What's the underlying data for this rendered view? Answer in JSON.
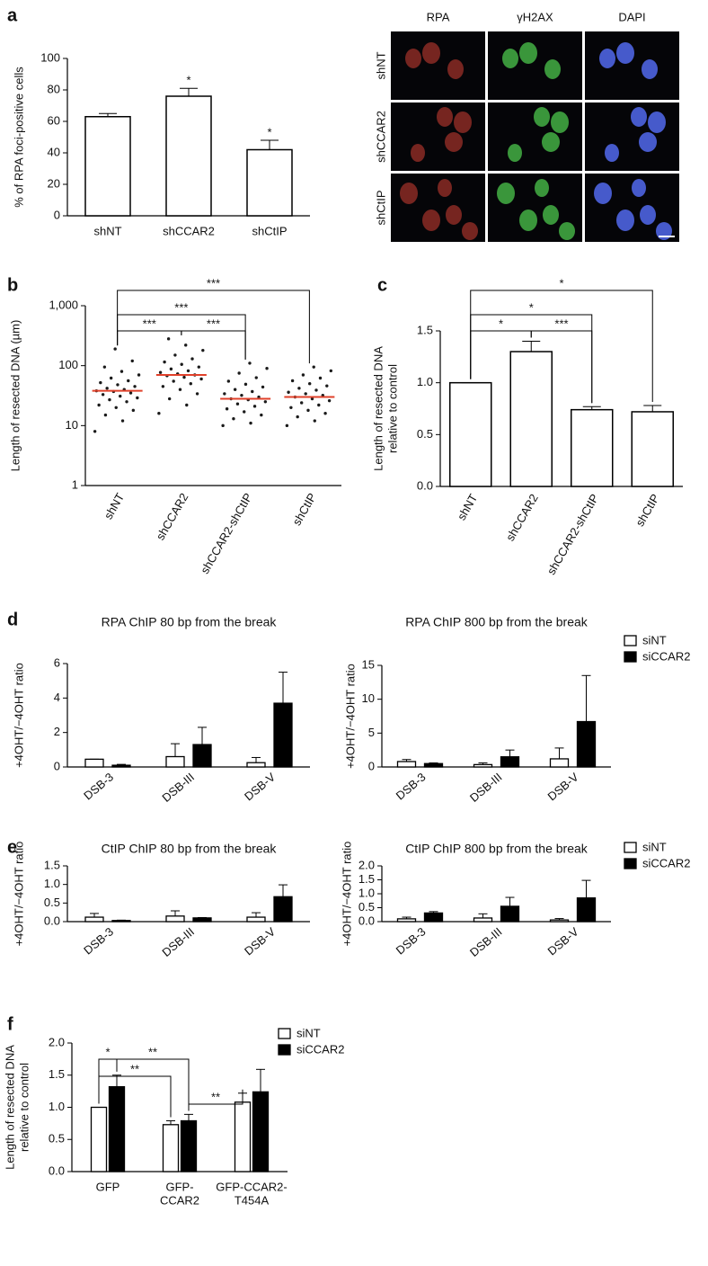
{
  "micrographs": {
    "columns": [
      "RPA",
      "γH2AX",
      "DAPI"
    ],
    "rows": [
      "shNT",
      "shCCAR2",
      "shCtIP"
    ]
  },
  "chart_data": [
    {
      "type": "bar",
      "panel": "a",
      "y_label": "% of RPA foci-positive cells",
      "categories": [
        "shNT",
        "shCCAR2",
        "shCtIP"
      ],
      "values": [
        63,
        76,
        42
      ],
      "errors": [
        2,
        5,
        6
      ],
      "color": "#ffffff",
      "ylim": [
        0,
        100
      ],
      "yticks": [
        0,
        20,
        40,
        60,
        80,
        100
      ],
      "annotations": [
        {
          "category": 1,
          "label": "*"
        },
        {
          "category": 2,
          "label": "*"
        }
      ]
    },
    {
      "type": "strip",
      "panel": "b",
      "y_label": "Length of resected DNA (µm)",
      "log_scale": true,
      "categories": [
        "shNT",
        "shCCAR2",
        "shCCAR2-shCtIP",
        "shCtIP"
      ],
      "points": [
        [
          8,
          12,
          15,
          18,
          20,
          22,
          25,
          27,
          29,
          31,
          33,
          35,
          37,
          38,
          40,
          42,
          45,
          48,
          52,
          56,
          62,
          70,
          80,
          95,
          120,
          190
        ],
        [
          16,
          22,
          28,
          34,
          40,
          45,
          50,
          55,
          60,
          64,
          68,
          70,
          73,
          77,
          82,
          88,
          95,
          105,
          115,
          130,
          150,
          180,
          220,
          280
        ],
        [
          10,
          11,
          13,
          15,
          17,
          19,
          21,
          23,
          25,
          27,
          28,
          30,
          32,
          34,
          37,
          40,
          44,
          49,
          55,
          63,
          75,
          90,
          110
        ],
        [
          10,
          12,
          14,
          16,
          18,
          20,
          22,
          24,
          26,
          28,
          30,
          32,
          34,
          36,
          39,
          42,
          46,
          50,
          56,
          62,
          70,
          82,
          95
        ]
      ],
      "medians": [
        38,
        70,
        28,
        30
      ],
      "point_color": "#1a1a1a",
      "median_color": "#e0402a",
      "ylim": [
        1,
        1000
      ],
      "yticks": [
        1,
        10,
        100,
        {
          "value": 1000,
          "label": "1,000"
        }
      ],
      "comparisons": [
        {
          "between": [
            0,
            3
          ],
          "label": "***"
        },
        {
          "between": [
            0,
            2
          ],
          "label": "***"
        },
        {
          "between": [
            0,
            1
          ],
          "label": "***"
        },
        {
          "between": [
            1,
            2
          ],
          "label": "***"
        }
      ]
    },
    {
      "type": "bar",
      "panel": "c",
      "y_label": [
        "Length of resected DNA",
        "relative to control"
      ],
      "categories": [
        "shNT",
        "shCCAR2",
        "shCCAR2-shCtIP",
        "shCtIP"
      ],
      "values": [
        1.0,
        1.3,
        0.74,
        0.72
      ],
      "errors": [
        0,
        0.1,
        0.03,
        0.06
      ],
      "color": "#ffffff",
      "ylim": [
        0,
        1.5
      ],
      "yticks": [
        {
          "value": 0,
          "label": "0.0"
        },
        0.5,
        {
          "value": 1,
          "label": "1.0"
        },
        1.5
      ],
      "comparisons": [
        {
          "between": [
            0,
            3
          ],
          "label": "*"
        },
        {
          "between": [
            0,
            2
          ],
          "label": "*"
        },
        {
          "between": [
            0,
            1
          ],
          "label": "*"
        },
        {
          "between": [
            1,
            2
          ],
          "label": "***"
        }
      ]
    },
    {
      "type": "bar",
      "panel": "d",
      "title": "RPA ChIP 80 bp from the break",
      "y_label": "+4OHT/−4OHT ratio",
      "categories": [
        "DSB-3",
        "DSB-III",
        "DSB-V"
      ],
      "series": [
        {
          "color": "#ffffff",
          "values": [
            0.45,
            0.6,
            0.25
          ],
          "errors": [
            0,
            0.75,
            0.3
          ]
        },
        {
          "color": "#000000",
          "values": [
            0.1,
            1.3,
            3.7
          ],
          "errors": [
            0.05,
            1.0,
            1.8
          ]
        }
      ],
      "ylim": [
        0,
        6
      ],
      "yticks": [
        0,
        2,
        4,
        6
      ]
    },
    {
      "type": "bar",
      "title": "RPA ChIP 800 bp from the break",
      "y_label": "+4OHT/−4OHT ratio",
      "legend": "right",
      "categories": [
        "DSB-3",
        "DSB-III",
        "DSB-V"
      ],
      "series": [
        {
          "name": "siNT",
          "color": "#ffffff",
          "values": [
            0.8,
            0.35,
            1.2
          ],
          "errors": [
            0.3,
            0.25,
            1.6
          ]
        },
        {
          "name": "siCCAR2",
          "color": "#000000",
          "values": [
            0.5,
            1.5,
            6.7
          ],
          "errors": [
            0.1,
            1.0,
            6.8
          ]
        }
      ],
      "ylim": [
        0,
        15
      ],
      "yticks": [
        0,
        5,
        10,
        15
      ]
    },
    {
      "type": "bar",
      "panel": "e",
      "title": "CtIP ChIP 80 bp from the break",
      "y_label": "+4OHT/−4OHT ratio",
      "categories": [
        "DSB-3",
        "DSB-III",
        "DSB-V"
      ],
      "series": [
        {
          "color": "#ffffff",
          "values": [
            0.12,
            0.15,
            0.12
          ],
          "errors": [
            0.1,
            0.14,
            0.12
          ]
        },
        {
          "color": "#000000",
          "values": [
            0.03,
            0.1,
            0.67
          ],
          "errors": [
            0.01,
            0.01,
            0.32
          ]
        }
      ],
      "ylim": [
        0,
        1.5
      ],
      "yticks": [
        {
          "value": 0,
          "label": "0.0"
        },
        0.5,
        {
          "value": 1,
          "label": "1.0"
        },
        1.5
      ]
    },
    {
      "type": "bar",
      "title": "CtIP ChIP 800 bp from the break",
      "y_label": "+4OHT/−4OHT ratio",
      "legend": "right",
      "categories": [
        "DSB-3",
        "DSB-III",
        "DSB-V"
      ],
      "series": [
        {
          "name": "siNT",
          "color": "#ffffff",
          "values": [
            0.1,
            0.13,
            0.06
          ],
          "errors": [
            0.06,
            0.15,
            0.05
          ]
        },
        {
          "name": "siCCAR2",
          "color": "#000000",
          "values": [
            0.31,
            0.55,
            0.85
          ],
          "errors": [
            0.05,
            0.32,
            0.63
          ]
        }
      ],
      "ylim": [
        0,
        2
      ],
      "yticks": [
        {
          "value": 0,
          "label": "0.0"
        },
        0.5,
        {
          "value": 1,
          "label": "1.0"
        },
        1.5,
        {
          "value": 2,
          "label": "2.0"
        }
      ]
    },
    {
      "type": "bar",
      "panel": "f",
      "y_label": [
        "Length of resected DNA",
        "relative to control"
      ],
      "legend": "right",
      "categories": [
        [
          "GFP"
        ],
        [
          "GFP-",
          "CCAR2"
        ],
        [
          "GFP-CCAR2-",
          "T454A"
        ]
      ],
      "series": [
        {
          "name": "siNT",
          "color": "#ffffff",
          "values": [
            1.0,
            0.73,
            1.08
          ],
          "errors": [
            0,
            0.06,
            0.14
          ]
        },
        {
          "name": "siCCAR2",
          "color": "#000000",
          "values": [
            1.32,
            0.79,
            1.24
          ],
          "errors": [
            0.18,
            0.1,
            0.35
          ]
        }
      ],
      "ylim": [
        0,
        2
      ],
      "yticks": [
        {
          "value": 0,
          "label": "0.0"
        },
        0.5,
        {
          "value": 1,
          "label": "1.0"
        },
        1.5,
        {
          "value": 2,
          "label": "2.0"
        }
      ],
      "comparisons": [
        {
          "between": [
            [
              0,
              0
            ],
            [
              1,
              0
            ]
          ],
          "label": "*"
        },
        {
          "between": [
            [
              1,
              0
            ],
            [
              1,
              1
            ]
          ],
          "label": "**"
        },
        {
          "between": [
            [
              0,
              0
            ],
            [
              0,
              1
            ]
          ],
          "label": "**"
        },
        {
          "between": [
            [
              1,
              1
            ],
            [
              0,
              2
            ]
          ],
          "label": "**"
        }
      ]
    }
  ]
}
